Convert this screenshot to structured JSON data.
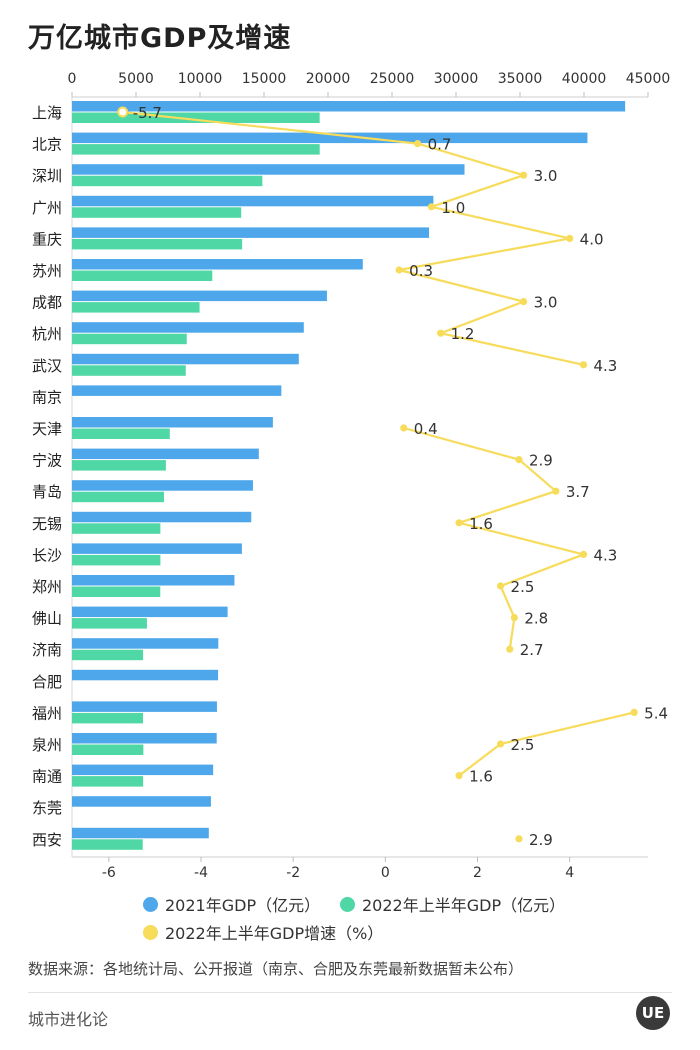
{
  "title": "万亿城市GDP及增速",
  "colors": {
    "gdp2021": "#4ea7ea",
    "gdp2022h1": "#4fd7a5",
    "growth": "#f7db5a"
  },
  "chart_data": {
    "type": "bar",
    "orientation": "horizontal",
    "categories": [
      "上海",
      "北京",
      "深圳",
      "广州",
      "重庆",
      "苏州",
      "成都",
      "杭州",
      "武汉",
      "南京",
      "天津",
      "宁波",
      "青岛",
      "无锡",
      "长沙",
      "郑州",
      "佛山",
      "济南",
      "合肥",
      "福州",
      "泉州",
      "南通",
      "东莞",
      "西安"
    ],
    "series": [
      {
        "name": "2021年GDP（亿元）",
        "axis": "top",
        "kind": "bar",
        "values": [
          43215,
          40270,
          30665,
          28232,
          27894,
          22718,
          19917,
          18109,
          17717,
          16355,
          15695,
          14595,
          14136,
          14003,
          13271,
          12691,
          12157,
          11432,
          11413,
          11324,
          11304,
          11027,
          10855,
          10688
        ]
      },
      {
        "name": "2022年上半年GDP（亿元）",
        "axis": "top",
        "kind": "bar",
        "values": [
          19349,
          19352,
          14870,
          13219,
          13291,
          10958,
          9965,
          8966,
          8888,
          null,
          7640,
          7334,
          7186,
          6905,
          6906,
          6897,
          5854,
          5553,
          null,
          5550,
          5575,
          5558,
          null,
          5526
        ]
      },
      {
        "name": "2022年上半年GDP增速（%）",
        "axis": "bottom",
        "kind": "line",
        "values": [
          -5.7,
          0.7,
          3.0,
          1.0,
          4.0,
          0.3,
          3.0,
          1.2,
          4.3,
          null,
          0.4,
          2.9,
          3.7,
          1.6,
          4.3,
          2.5,
          2.8,
          2.7,
          null,
          5.4,
          2.5,
          1.6,
          null,
          2.9
        ],
        "labels": [
          "-5.7",
          "0.7",
          "3.0",
          "1.0",
          "4.0",
          "0.3",
          "3.0",
          "1.2",
          "4.3",
          null,
          "0.4",
          "2.9",
          "3.7",
          "1.6",
          "4.3",
          "2.5",
          "2.8",
          "2.7",
          null,
          "5.4",
          "2.5",
          "1.6",
          null,
          "2.9"
        ]
      }
    ],
    "top_axis": {
      "range": [
        0,
        45000
      ],
      "ticks": [
        0,
        5000,
        10000,
        15000,
        20000,
        25000,
        30000,
        35000,
        40000,
        45000
      ]
    },
    "bottom_axis": {
      "range": [
        -6.8,
        5.7
      ],
      "ticks": [
        -6,
        -4,
        -2,
        0,
        2,
        4
      ]
    },
    "legend": [
      "2021年GDP（亿元）",
      "2022年上半年GDP（亿元）",
      "2022年上半年GDP增速（%）"
    ],
    "grid": false
  },
  "source": "数据来源：各地统计局、公开报道（南京、合肥及东莞最新数据暂未公布）",
  "brand": "城市进化论",
  "logo_text": "UE"
}
